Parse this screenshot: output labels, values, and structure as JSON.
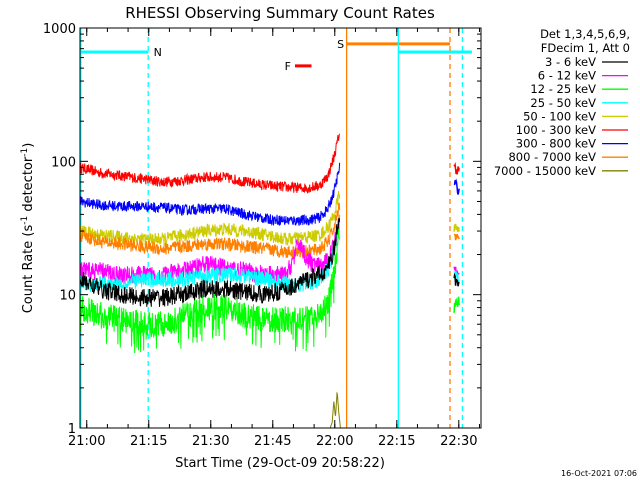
{
  "chart_data": {
    "type": "line",
    "title": "RHESSI Observing Summary Count Rates",
    "xlabel": "Start Time (29-Oct-09 20:58:22)",
    "ylabel_main": "Count Rate (s",
    "ylabel_sup1": "-1",
    "ylabel_mid": " detector",
    "ylabel_sup2": "-1",
    "ylabel_end": ")",
    "x_range_min": [
      0,
      97
    ],
    "y_scale": "log",
    "ylim": [
      1,
      1000
    ],
    "x_ticks": [
      {
        "min": 1.63,
        "label": "21:00"
      },
      {
        "min": 16.63,
        "label": "21:15"
      },
      {
        "min": 31.63,
        "label": "21:30"
      },
      {
        "min": 46.63,
        "label": "21:45"
      },
      {
        "min": 61.63,
        "label": "22:00"
      },
      {
        "min": 76.63,
        "label": "22:15"
      },
      {
        "min": 91.63,
        "label": "22:30"
      }
    ],
    "y_ticks": [
      {
        "value": 1,
        "label": "1"
      },
      {
        "value": 10,
        "label": "10"
      },
      {
        "value": 100,
        "label": "100"
      },
      {
        "value": 1000,
        "label": "1000"
      }
    ],
    "legend": {
      "position": "top-right",
      "header": [
        "Det 1,3,4,5,6,9,",
        "FDecim 1, Att 0"
      ],
      "entries": [
        {
          "label": "3 - 6 keV",
          "color": "#000000"
        },
        {
          "label": "6 - 12 keV",
          "color": "#ff00ff"
        },
        {
          "label": "12 - 25 keV",
          "color": "#00ff00"
        },
        {
          "label": "25 - 50 keV",
          "color": "#00ffff"
        },
        {
          "label": "50 - 100 keV",
          "color": "#cccc00"
        },
        {
          "label": "100 - 300 keV",
          "color": "#ff0000"
        },
        {
          "label": "300 - 800 keV",
          "color": "#0000ff"
        },
        {
          "label": "800 - 7000 keV",
          "color": "#ff8000"
        },
        {
          "label": "7000 - 15000 keV",
          "color": "#808000"
        }
      ]
    },
    "series": [
      {
        "color": "#ff0000",
        "t": [
          0,
          5,
          10,
          15,
          20,
          25,
          30,
          35,
          40,
          45,
          50,
          55,
          58,
          60,
          61.5,
          62.8
        ],
        "y": [
          90,
          82,
          78,
          74,
          70,
          72,
          76,
          76,
          70,
          66,
          64,
          63,
          66,
          78,
          110,
          165
        ],
        "jitter": 0.04,
        "late": {
          "t": [
            90.5,
            91.7
          ],
          "y": [
            90,
            85
          ]
        }
      },
      {
        "color": "#0000ff",
        "t": [
          0,
          5,
          10,
          15,
          20,
          25,
          30,
          35,
          40,
          45,
          50,
          55,
          58,
          60,
          61.5,
          62.8
        ],
        "y": [
          50,
          47,
          46,
          46,
          45,
          43,
          44,
          44,
          40,
          37,
          36,
          36,
          38,
          44,
          60,
          90
        ],
        "jitter": 0.04,
        "late": {
          "t": [
            90.5,
            91.7
          ],
          "y": [
            70,
            60
          ]
        }
      },
      {
        "color": "#cccc00",
        "t": [
          0,
          5,
          10,
          15,
          20,
          25,
          30,
          35,
          40,
          45,
          50,
          55,
          58,
          60,
          61.5,
          62.8
        ],
        "y": [
          30,
          28,
          27,
          26,
          26,
          28,
          30,
          31,
          30,
          28,
          26,
          27,
          28,
          32,
          40,
          58
        ],
        "jitter": 0.05,
        "late": {
          "t": [
            90.5,
            91.7
          ],
          "y": [
            32,
            30
          ]
        }
      },
      {
        "color": "#ff8000",
        "t": [
          0,
          5,
          10,
          15,
          20,
          25,
          30,
          35,
          40,
          45,
          50,
          55,
          58,
          60,
          61.5,
          62.8
        ],
        "y": [
          28,
          25,
          24,
          23,
          22,
          23,
          24,
          24,
          23,
          22,
          21,
          21,
          22,
          25,
          32,
          48
        ],
        "jitter": 0.05,
        "late": {
          "t": [
            90.5,
            91.7
          ],
          "y": [
            28,
            26
          ]
        }
      },
      {
        "color": "#ff00ff",
        "t": [
          0,
          5,
          10,
          15,
          20,
          25,
          30,
          35,
          40,
          45,
          50,
          52,
          53,
          55,
          58,
          60,
          61.5,
          62.8
        ],
        "y": [
          15,
          15,
          14,
          14,
          14,
          15,
          17,
          16,
          15,
          14,
          14,
          20,
          25,
          18,
          16,
          18,
          24,
          38
        ],
        "jitter": 0.07,
        "late": {
          "t": [
            90.5,
            91.7
          ],
          "y": [
            16,
            15
          ]
        }
      },
      {
        "color": "#00ffff",
        "t": [
          0,
          5,
          10,
          15,
          20,
          25,
          30,
          35,
          40,
          45,
          50,
          55,
          58,
          60,
          61.5,
          62.8
        ],
        "y": [
          12,
          12,
          12,
          13,
          13,
          13,
          14,
          14,
          14,
          13,
          12,
          12,
          13,
          15,
          22,
          35
        ],
        "jitter": 0.06,
        "late": {
          "t": [
            90.5,
            91.7
          ],
          "y": [
            14,
            13
          ]
        }
      },
      {
        "color": "#000000",
        "t": [
          0,
          5,
          10,
          15,
          20,
          25,
          30,
          35,
          40,
          45,
          50,
          55,
          58,
          60,
          61.5,
          62.8
        ],
        "y": [
          13,
          11,
          10,
          9.5,
          9.5,
          10,
          11,
          11,
          10.5,
          10,
          11,
          13,
          14,
          16,
          22,
          40
        ],
        "jitter": 0.07,
        "late": {
          "t": [
            90.5,
            91.7
          ],
          "y": [
            13,
            12
          ]
        }
      },
      {
        "color": "#00ff00",
        "t": [
          0,
          5,
          10,
          15,
          20,
          25,
          30,
          35,
          40,
          45,
          50,
          55,
          58,
          60,
          61.5,
          62.8
        ],
        "y": [
          8,
          7,
          6.5,
          6,
          6,
          6.8,
          8,
          8,
          7,
          6.5,
          6.5,
          6.5,
          7,
          9,
          15,
          28
        ],
        "jitter": 0.1,
        "late": {
          "t": [
            90.5,
            91.7
          ],
          "y": [
            8,
            9
          ]
        }
      },
      {
        "color": "#808000",
        "t": [
          60.5,
          61,
          61.4,
          61.8,
          62.2,
          62.6,
          63
        ],
        "y": [
          1,
          1.1,
          1.6,
          1.2,
          1.9,
          1.3,
          1
        ],
        "jitter": 0.0,
        "late": null
      }
    ],
    "bars": [
      {
        "label": "",
        "color": "#00ffff",
        "y": 660,
        "t0": 0,
        "t1": 16.5
      },
      {
        "label": "N",
        "color": "#00ffff",
        "y": 660,
        "t0": 77,
        "t1": 94.8
      },
      {
        "label": "F",
        "color": "#ff0000",
        "y": 520,
        "t0": 52,
        "t1": 56
      },
      {
        "label": "S",
        "color": "#ff8000",
        "y": 760,
        "t0": 64.5,
        "t1": 89.5
      }
    ],
    "bar_labels": [
      {
        "text": "N",
        "color": "#00ffff",
        "t": 17.8,
        "y": 660
      },
      {
        "text": "F",
        "color": "#ff0000",
        "t": 49.5,
        "y": 520
      },
      {
        "text": "S",
        "color": "#ff8000",
        "t": 62.2,
        "y": 760
      }
    ],
    "vlines": [
      {
        "t": 0.2,
        "color": "#00ffff",
        "dashed": false
      },
      {
        "t": 16.5,
        "color": "#00ffff",
        "dashed": true
      },
      {
        "t": 64.5,
        "color": "#ff8000",
        "dashed": false
      },
      {
        "t": 77,
        "color": "#00ffff",
        "dashed": false
      },
      {
        "t": 89.5,
        "color": "#ff8000",
        "dashed": true
      },
      {
        "t": 92.5,
        "color": "#00ffff",
        "dashed": true
      }
    ],
    "grid": false,
    "footer": "16-Oct-2021 07:06"
  }
}
